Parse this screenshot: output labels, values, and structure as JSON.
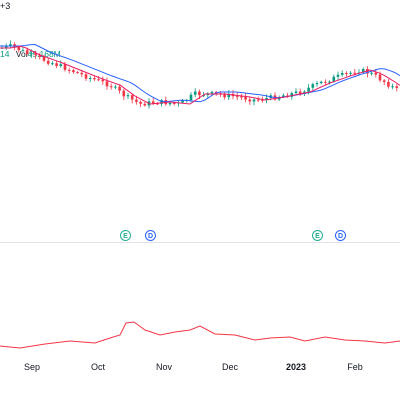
{
  "legend": {
    "top_fragment": "+3",
    "row_fragment": "14",
    "volume_label": "Vol",
    "volume_value": "45.168M"
  },
  "indicators": {
    "ma_fast_color": "#e91e63",
    "ma_slow_color": "#2962ff",
    "oscillator_color": "#f23645",
    "up_color": "#089981",
    "down_color": "#f23645"
  },
  "events": [
    {
      "letter": "E",
      "type": "earnings"
    },
    {
      "letter": "D",
      "type": "dividend"
    },
    {
      "letter": "E",
      "type": "earnings"
    },
    {
      "letter": "D",
      "type": "dividend"
    }
  ],
  "time_axis": {
    "labels": [
      "Sep",
      "Oct",
      "Nov",
      "Dec",
      "2023",
      "Feb"
    ]
  }
}
